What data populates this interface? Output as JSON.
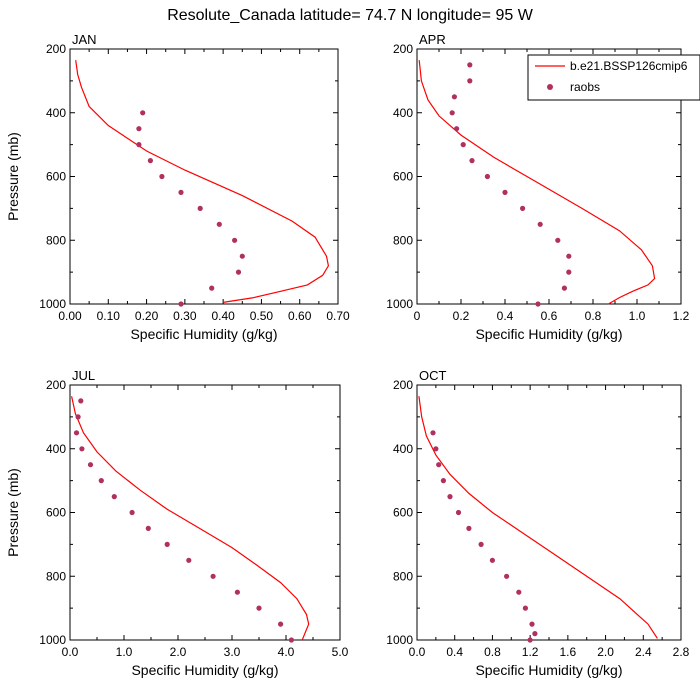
{
  "figure": {
    "title": "Resolute_Canada  latitude= 74.7 N longitude= 95 W"
  },
  "legend": {
    "model_label": "b.e21.BSSP126cmip6",
    "obs_label": "raobs",
    "model_color": "#ff0000",
    "obs_color": "#b03060"
  },
  "chart_data": [
    {
      "type": "line",
      "panel": "JAN",
      "title": "JAN",
      "xlabel": "Specific Humidity (g/kg)",
      "ylabel": "Pressure (mb)",
      "xlim": [
        0,
        0.7
      ],
      "ylim": [
        1000,
        200
      ],
      "y_reversed": true,
      "xticks": [
        0,
        0.1,
        0.2,
        0.3,
        0.4,
        0.5,
        0.6,
        0.7
      ],
      "xtick_labels": [
        "0.00",
        "0.10",
        "0.20",
        "0.30",
        "0.40",
        "0.50",
        "0.60",
        "0.70"
      ],
      "yticks": [
        200,
        400,
        600,
        800,
        1000
      ],
      "series": [
        {
          "name": "b.e21.BSSP126cmip6",
          "kind": "line",
          "x": [
            0.015,
            0.02,
            0.03,
            0.05,
            0.1,
            0.15,
            0.2,
            0.3,
            0.45,
            0.58,
            0.64,
            0.67,
            0.675,
            0.66,
            0.62,
            0.55,
            0.48,
            0.4
          ],
          "y": [
            235,
            280,
            320,
            380,
            440,
            480,
            520,
            580,
            660,
            740,
            790,
            850,
            880,
            910,
            940,
            960,
            980,
            995
          ]
        },
        {
          "name": "raobs",
          "kind": "scatter",
          "x": [
            0.19,
            0.18,
            0.18,
            0.21,
            0.24,
            0.29,
            0.34,
            0.39,
            0.43,
            0.45,
            0.44,
            0.37,
            0.29
          ],
          "y": [
            400,
            450,
            500,
            550,
            600,
            650,
            700,
            750,
            800,
            850,
            900,
            950,
            1000
          ]
        }
      ]
    },
    {
      "type": "line",
      "panel": "APR",
      "title": "APR",
      "xlabel": "Specific Humidity (g/kg)",
      "ylabel": "",
      "xlim": [
        0,
        1.2
      ],
      "ylim": [
        1000,
        200
      ],
      "y_reversed": true,
      "xticks": [
        0,
        0.2,
        0.4,
        0.6,
        0.8,
        1.0,
        1.2
      ],
      "xtick_labels": [
        "0",
        "0.2",
        "0.4",
        "0.6",
        "0.8",
        "1.0",
        "1.2"
      ],
      "yticks": [
        200,
        400,
        600,
        800,
        1000
      ],
      "series": [
        {
          "name": "b.e21.BSSP126cmip6",
          "kind": "line",
          "x": [
            0.01,
            0.02,
            0.05,
            0.1,
            0.2,
            0.35,
            0.55,
            0.75,
            0.92,
            1.02,
            1.07,
            1.08,
            1.05,
            0.98,
            0.92,
            0.87
          ],
          "y": [
            235,
            300,
            360,
            410,
            470,
            540,
            620,
            700,
            770,
            830,
            880,
            920,
            940,
            960,
            980,
            1000
          ]
        },
        {
          "name": "raobs",
          "kind": "scatter",
          "x": [
            0.24,
            0.24,
            0.17,
            0.16,
            0.18,
            0.21,
            0.25,
            0.32,
            0.4,
            0.48,
            0.56,
            0.64,
            0.69,
            0.69,
            0.67,
            0.55
          ],
          "y": [
            250,
            300,
            350,
            400,
            450,
            500,
            550,
            600,
            650,
            700,
            750,
            800,
            850,
            900,
            950,
            1000
          ]
        }
      ]
    },
    {
      "type": "line",
      "panel": "JUL",
      "title": "JUL",
      "xlabel": "Specific Humidity (g/kg)",
      "ylabel": "Pressure (mb)",
      "xlim": [
        0,
        5.0
      ],
      "ylim": [
        1000,
        200
      ],
      "y_reversed": true,
      "xticks": [
        0,
        1,
        2,
        3,
        4,
        5
      ],
      "xtick_labels": [
        "0.0",
        "1.0",
        "2.0",
        "3.0",
        "4.0",
        "5.0"
      ],
      "yticks": [
        200,
        400,
        600,
        800,
        1000
      ],
      "series": [
        {
          "name": "b.e21.BSSP126cmip6",
          "kind": "line",
          "x": [
            0.03,
            0.1,
            0.25,
            0.5,
            0.85,
            1.3,
            1.8,
            2.4,
            3.0,
            3.5,
            3.9,
            4.2,
            4.38,
            4.42,
            4.3
          ],
          "y": [
            235,
            290,
            350,
            410,
            470,
            530,
            590,
            650,
            710,
            770,
            820,
            870,
            920,
            950,
            1000
          ]
        },
        {
          "name": "raobs",
          "kind": "scatter",
          "x": [
            0.2,
            0.15,
            0.12,
            0.22,
            0.38,
            0.58,
            0.82,
            1.15,
            1.45,
            1.8,
            2.2,
            2.65,
            3.1,
            3.5,
            3.9,
            4.1
          ],
          "y": [
            250,
            300,
            350,
            400,
            450,
            500,
            550,
            600,
            650,
            700,
            750,
            800,
            850,
            900,
            950,
            1000
          ]
        }
      ]
    },
    {
      "type": "line",
      "panel": "OCT",
      "title": "OCT",
      "xlabel": "Specific Humidity (g/kg)",
      "ylabel": "",
      "xlim": [
        0,
        2.8
      ],
      "ylim": [
        1000,
        200
      ],
      "y_reversed": true,
      "xticks": [
        0,
        0.4,
        0.8,
        1.2,
        1.6,
        2.0,
        2.4,
        2.8
      ],
      "xtick_labels": [
        "0.0",
        "0.4",
        "0.8",
        "1.2",
        "1.6",
        "2.0",
        "2.4",
        "2.8"
      ],
      "yticks": [
        200,
        400,
        600,
        800,
        1000
      ],
      "series": [
        {
          "name": "b.e21.BSSP126cmip6",
          "kind": "line",
          "x": [
            0.02,
            0.05,
            0.1,
            0.2,
            0.35,
            0.55,
            0.8,
            1.1,
            1.45,
            1.8,
            2.15,
            2.45,
            2.55
          ],
          "y": [
            235,
            300,
            360,
            420,
            480,
            540,
            600,
            660,
            730,
            800,
            870,
            950,
            995
          ]
        },
        {
          "name": "raobs",
          "kind": "scatter",
          "x": [
            0.17,
            0.2,
            0.23,
            0.28,
            0.35,
            0.44,
            0.55,
            0.68,
            0.8,
            0.95,
            1.08,
            1.15,
            1.22,
            1.25,
            1.2
          ],
          "y": [
            350,
            400,
            450,
            500,
            550,
            600,
            650,
            700,
            750,
            800,
            850,
            900,
            950,
            980,
            1000
          ]
        }
      ]
    }
  ]
}
